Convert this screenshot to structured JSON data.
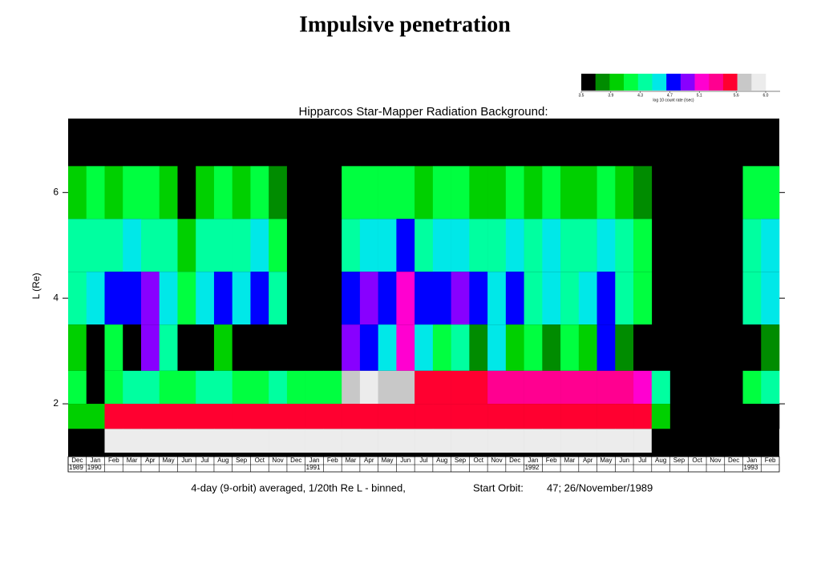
{
  "header": {
    "title": "Impulsive penetration"
  },
  "chart_data": {
    "type": "heatmap",
    "title": "Hipparcos Star-Mapper Radiation Background:",
    "y_label": "L (Re)",
    "ylim": [
      1.0,
      7.4
    ],
    "yticks": [
      2,
      4,
      6
    ],
    "y": [
      6.0,
      5.0,
      4.0,
      3.0,
      2.25,
      1.75,
      1.3
    ],
    "categories": [
      "Dec",
      "Jan",
      "Feb",
      "Mar",
      "Apr",
      "May",
      "Jun",
      "Jul",
      "Aug",
      "Sep",
      "Oct",
      "Nov",
      "Dec",
      "Jan",
      "Feb",
      "Mar",
      "Apr",
      "May",
      "Jun",
      "Jul",
      "Aug",
      "Sep",
      "Oct",
      "Nov",
      "Dec",
      "Jan",
      "Feb",
      "Mar",
      "Apr",
      "May",
      "Jun",
      "Jul",
      "Aug",
      "Sep",
      "Oct",
      "Nov",
      "Dec",
      "Jan",
      "Feb"
    ],
    "years": [
      "1989",
      "1990",
      null,
      null,
      null,
      null,
      null,
      null,
      null,
      null,
      null,
      null,
      null,
      "1991",
      null,
      null,
      null,
      null,
      null,
      null,
      null,
      null,
      null,
      null,
      null,
      "1992",
      null,
      null,
      null,
      null,
      null,
      null,
      null,
      null,
      null,
      null,
      null,
      "1993",
      null
    ],
    "z": [
      [
        3.9,
        4.1,
        4.0,
        4.2,
        4.1,
        4.0,
        3.6,
        3.9,
        4.1,
        4.0,
        4.1,
        3.8,
        3.5,
        3.5,
        3.5,
        4.1,
        4.2,
        4.1,
        4.2,
        4.0,
        4.1,
        4.2,
        4.0,
        3.9,
        4.1,
        4.0,
        4.2,
        3.9,
        4.0,
        4.2,
        4.0,
        3.7,
        null,
        null,
        null,
        null,
        null,
        4.1,
        4.2
      ],
      [
        4.3,
        4.3,
        4.4,
        4.5,
        4.4,
        4.3,
        4.0,
        4.3,
        4.4,
        4.4,
        4.5,
        4.2,
        3.5,
        3.5,
        3.5,
        4.4,
        4.6,
        4.5,
        4.7,
        4.4,
        4.5,
        4.6,
        4.4,
        4.3,
        4.5,
        4.3,
        4.5,
        4.3,
        4.4,
        4.6,
        4.3,
        4.1,
        null,
        null,
        null,
        null,
        null,
        4.3,
        4.5
      ],
      [
        4.3,
        4.5,
        4.7,
        4.8,
        5.0,
        4.6,
        4.2,
        4.5,
        4.7,
        4.5,
        4.7,
        4.3,
        3.5,
        3.5,
        3.5,
        4.8,
        5.0,
        4.8,
        5.1,
        4.7,
        4.8,
        4.9,
        4.7,
        4.5,
        4.7,
        4.4,
        4.6,
        4.4,
        4.5,
        4.8,
        4.4,
        4.2,
        null,
        null,
        null,
        null,
        null,
        4.4,
        4.6
      ],
      [
        3.9,
        3.5,
        4.2,
        3.6,
        4.9,
        4.3,
        3.5,
        3.6,
        4.0,
        3.5,
        3.6,
        3.5,
        3.5,
        3.5,
        3.5,
        5.0,
        4.8,
        4.6,
        5.1,
        4.5,
        4.1,
        4.3,
        3.8,
        4.6,
        3.9,
        4.2,
        3.7,
        4.1,
        3.9,
        4.7,
        3.8,
        3.6,
        null,
        null,
        null,
        null,
        null,
        3.6,
        3.8
      ],
      [
        4.1,
        3.6,
        4.2,
        4.3,
        4.3,
        4.2,
        4.1,
        4.3,
        4.3,
        4.2,
        4.2,
        4.3,
        4.2,
        4.2,
        4.2,
        5.8,
        5.9,
        5.8,
        5.7,
        5.6,
        5.5,
        5.5,
        5.5,
        5.4,
        5.4,
        5.4,
        5.3,
        5.3,
        5.3,
        5.3,
        5.3,
        5.2,
        4.3,
        null,
        null,
        null,
        null,
        4.2,
        4.3
      ],
      [
        4.0,
        4.0,
        5.5,
        5.5,
        5.5,
        5.5,
        5.5,
        5.5,
        5.5,
        5.5,
        5.5,
        5.5,
        5.5,
        5.5,
        5.5,
        5.6,
        5.6,
        5.6,
        5.6,
        5.6,
        5.6,
        5.6,
        5.6,
        5.6,
        5.6,
        5.6,
        5.6,
        5.6,
        5.6,
        5.6,
        5.6,
        5.6,
        4.0,
        null,
        null,
        null,
        null,
        3.6,
        3.6
      ],
      [
        3.6,
        3.6,
        5.9,
        5.9,
        5.9,
        5.9,
        5.9,
        5.9,
        5.9,
        5.9,
        5.9,
        5.9,
        5.9,
        5.9,
        5.9,
        5.9,
        5.9,
        5.9,
        5.9,
        5.9,
        5.9,
        5.9,
        5.9,
        5.9,
        5.9,
        5.9,
        5.9,
        5.9,
        5.9,
        5.9,
        5.9,
        5.9,
        3.6,
        null,
        null,
        null,
        null,
        null,
        null
      ]
    ],
    "colorscale": [
      "#000000",
      "#008c00",
      "#00d000",
      "#00ff40",
      "#00ffa0",
      "#00e8e8",
      "#0000ff",
      "#8800ff",
      "#ff00d0",
      "#ff0090",
      "#ff0030",
      "#c8c8c8",
      "#ececec"
    ],
    "zlim": [
      3.5,
      6.0
    ],
    "zticks": [
      3.5,
      3.9,
      4.3,
      4.7,
      5.1,
      5.6,
      {
        "value": 6,
        "label": "6.0"
      }
    ],
    "z_label": "log 10 count rate (/sec)",
    "note": "4-day (9-orbit) averaged, 1/20th Re L - binned,",
    "start_orbit_label": "Start Orbit:",
    "start_orbit": "47;  26/November/1989"
  }
}
